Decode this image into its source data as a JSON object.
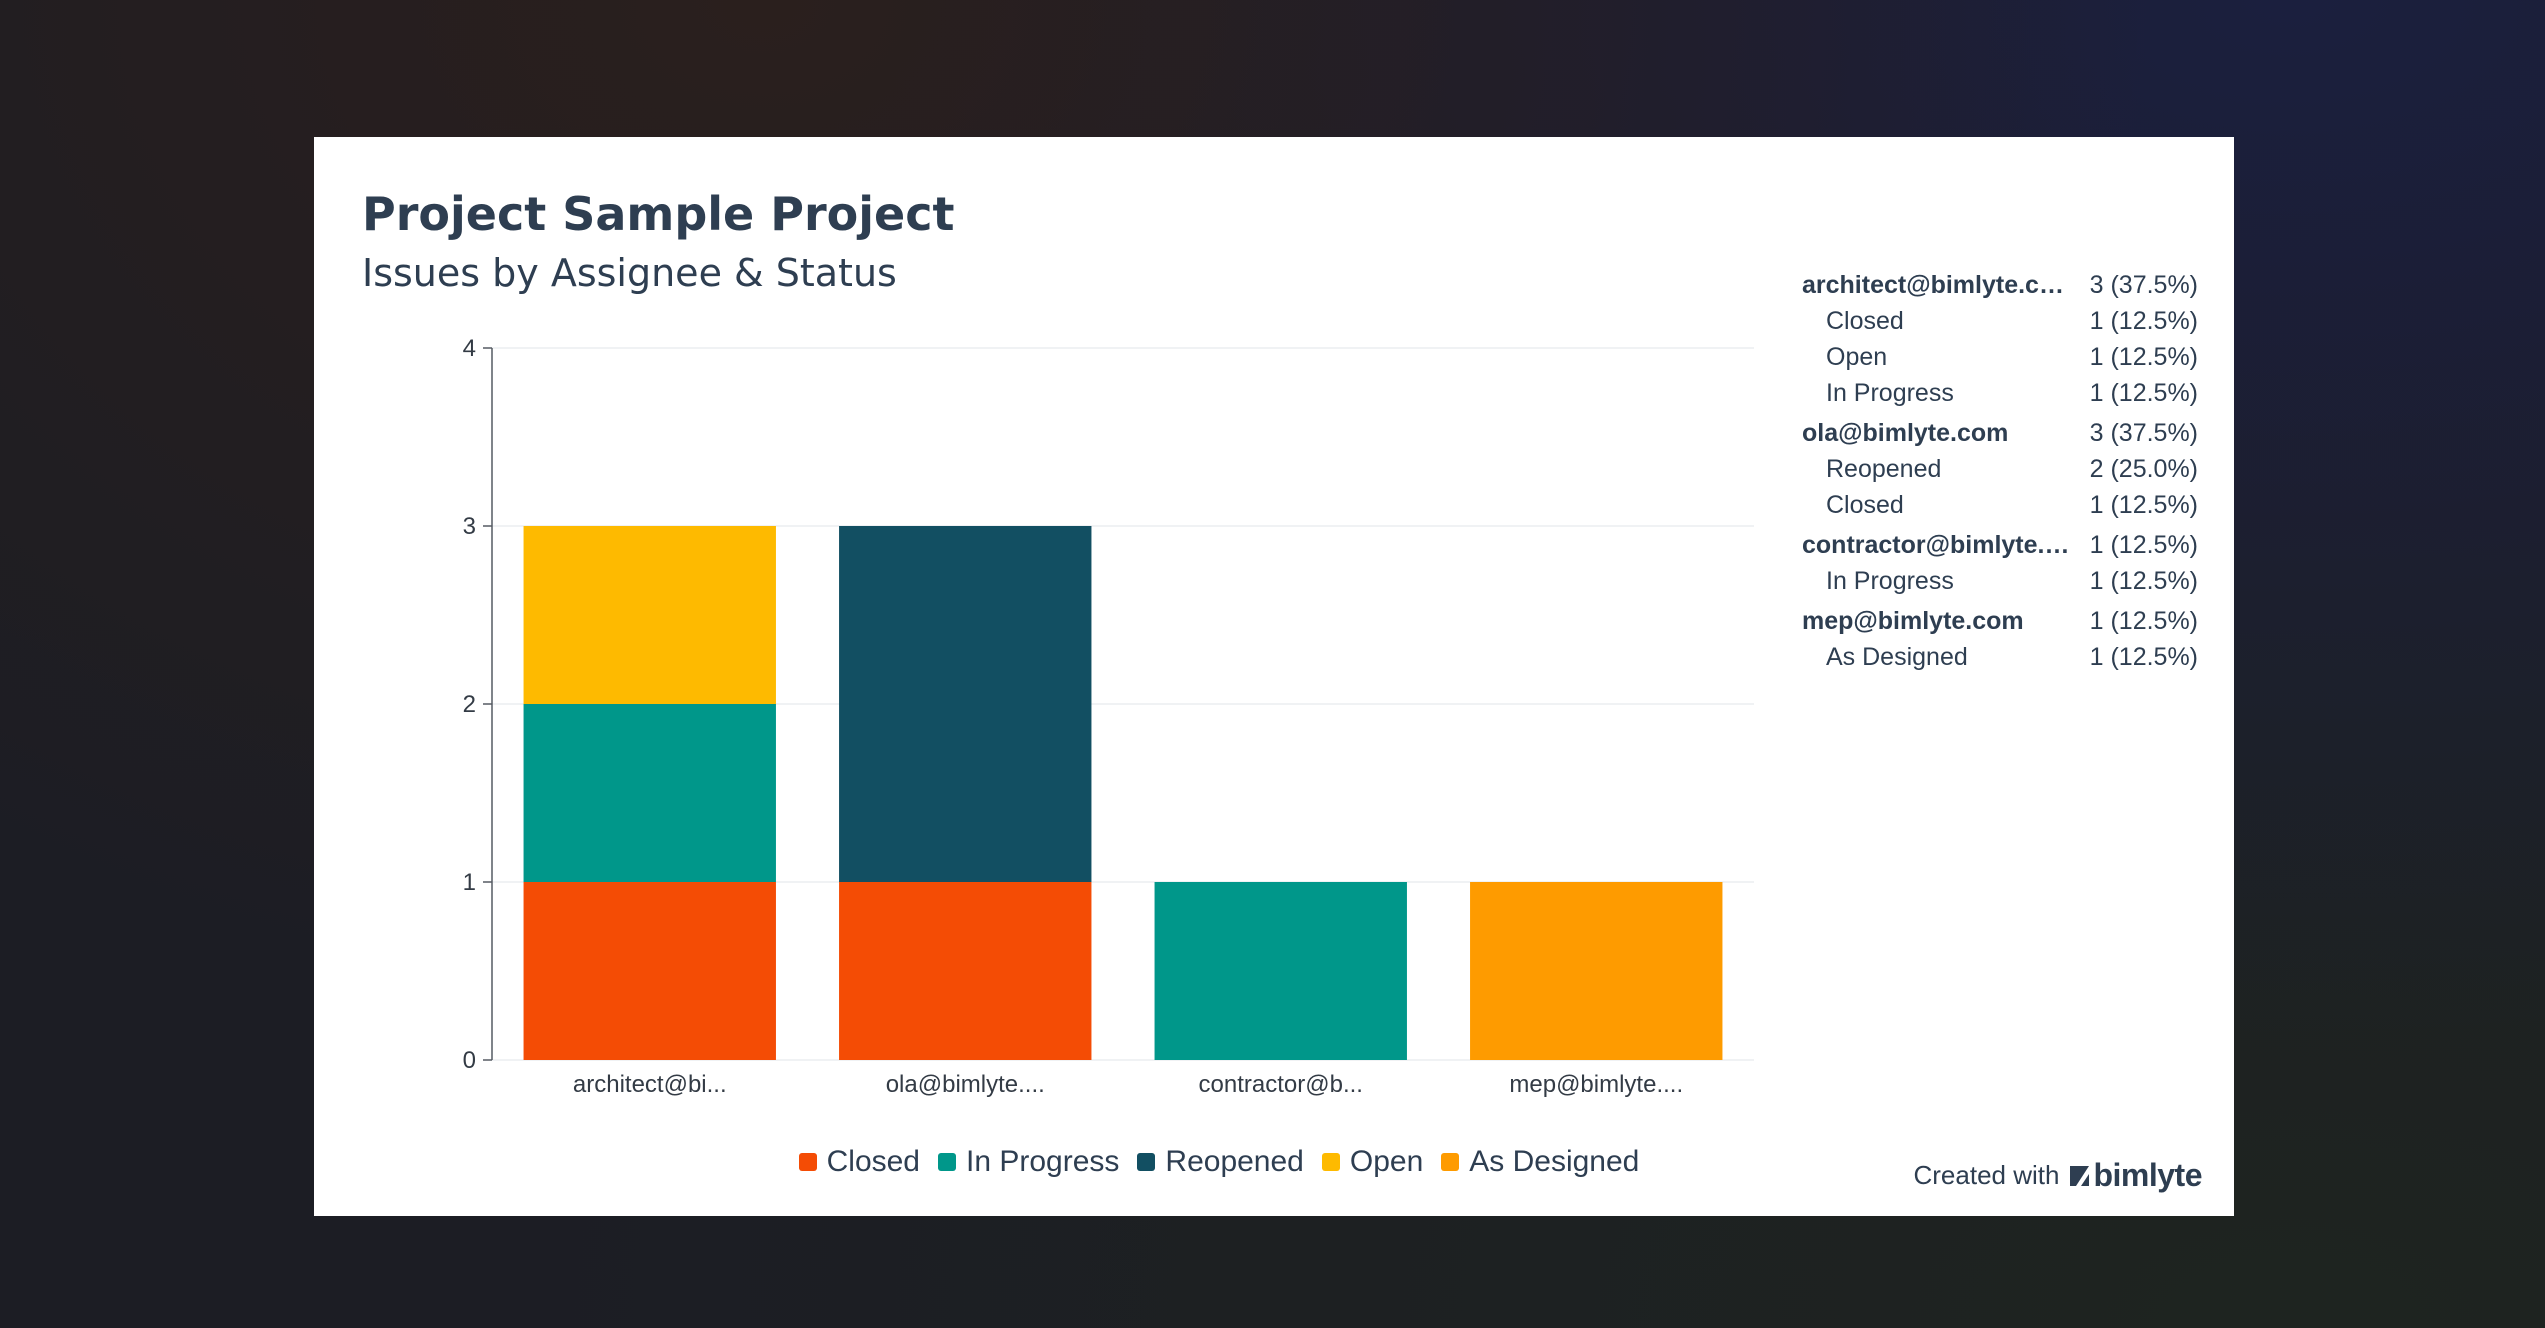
{
  "chart": {
    "title": "Project Sample Project",
    "subtitle": "Issues by Assignee & Status"
  },
  "chart_data": {
    "type": "bar",
    "stacked": true,
    "categories": [
      "architect@bi...",
      "ola@bimlyte....",
      "contractor@b...",
      "mep@bimlyte...."
    ],
    "series": [
      {
        "name": "Closed",
        "color": "#f44c05",
        "values": [
          1,
          1,
          0,
          0
        ]
      },
      {
        "name": "In Progress",
        "color": "#00978a",
        "values": [
          1,
          0,
          1,
          0
        ]
      },
      {
        "name": "Reopened",
        "color": "#124f62",
        "values": [
          0,
          2,
          0,
          0
        ]
      },
      {
        "name": "Open",
        "color": "#feba00",
        "values": [
          1,
          0,
          0,
          0
        ]
      },
      {
        "name": "As Designed",
        "color": "#fe9b00",
        "values": [
          0,
          0,
          0,
          1
        ]
      }
    ],
    "yticks": [
      "0",
      "1",
      "2",
      "3",
      "4"
    ],
    "ylim": [
      0,
      4
    ],
    "grid": true,
    "legend_position": "bottom"
  },
  "breakdown": [
    {
      "type": "group",
      "label": "architect@bimlyte.co...",
      "value": "3 (37.5%)"
    },
    {
      "type": "sub",
      "label": "Closed",
      "value": "1 (12.5%)"
    },
    {
      "type": "sub",
      "label": "Open",
      "value": "1 (12.5%)"
    },
    {
      "type": "sub",
      "label": "In Progress",
      "value": "1 (12.5%)"
    },
    {
      "type": "group",
      "label": "ola@bimlyte.com",
      "value": "3 (37.5%)"
    },
    {
      "type": "sub",
      "label": "Reopened",
      "value": "2 (25.0%)"
    },
    {
      "type": "sub",
      "label": "Closed",
      "value": "1 (12.5%)"
    },
    {
      "type": "group",
      "label": "contractor@bimlyte.c...",
      "value": "1 (12.5%)"
    },
    {
      "type": "sub",
      "label": "In Progress",
      "value": "1 (12.5%)"
    },
    {
      "type": "group",
      "label": "mep@bimlyte.com",
      "value": "1 (12.5%)"
    },
    {
      "type": "sub",
      "label": "As Designed",
      "value": "1 (12.5%)"
    }
  ],
  "footer": {
    "prefix": "Created with",
    "brand": "bimlyte",
    "brand_icon": "bimlyte-logo-icon"
  }
}
